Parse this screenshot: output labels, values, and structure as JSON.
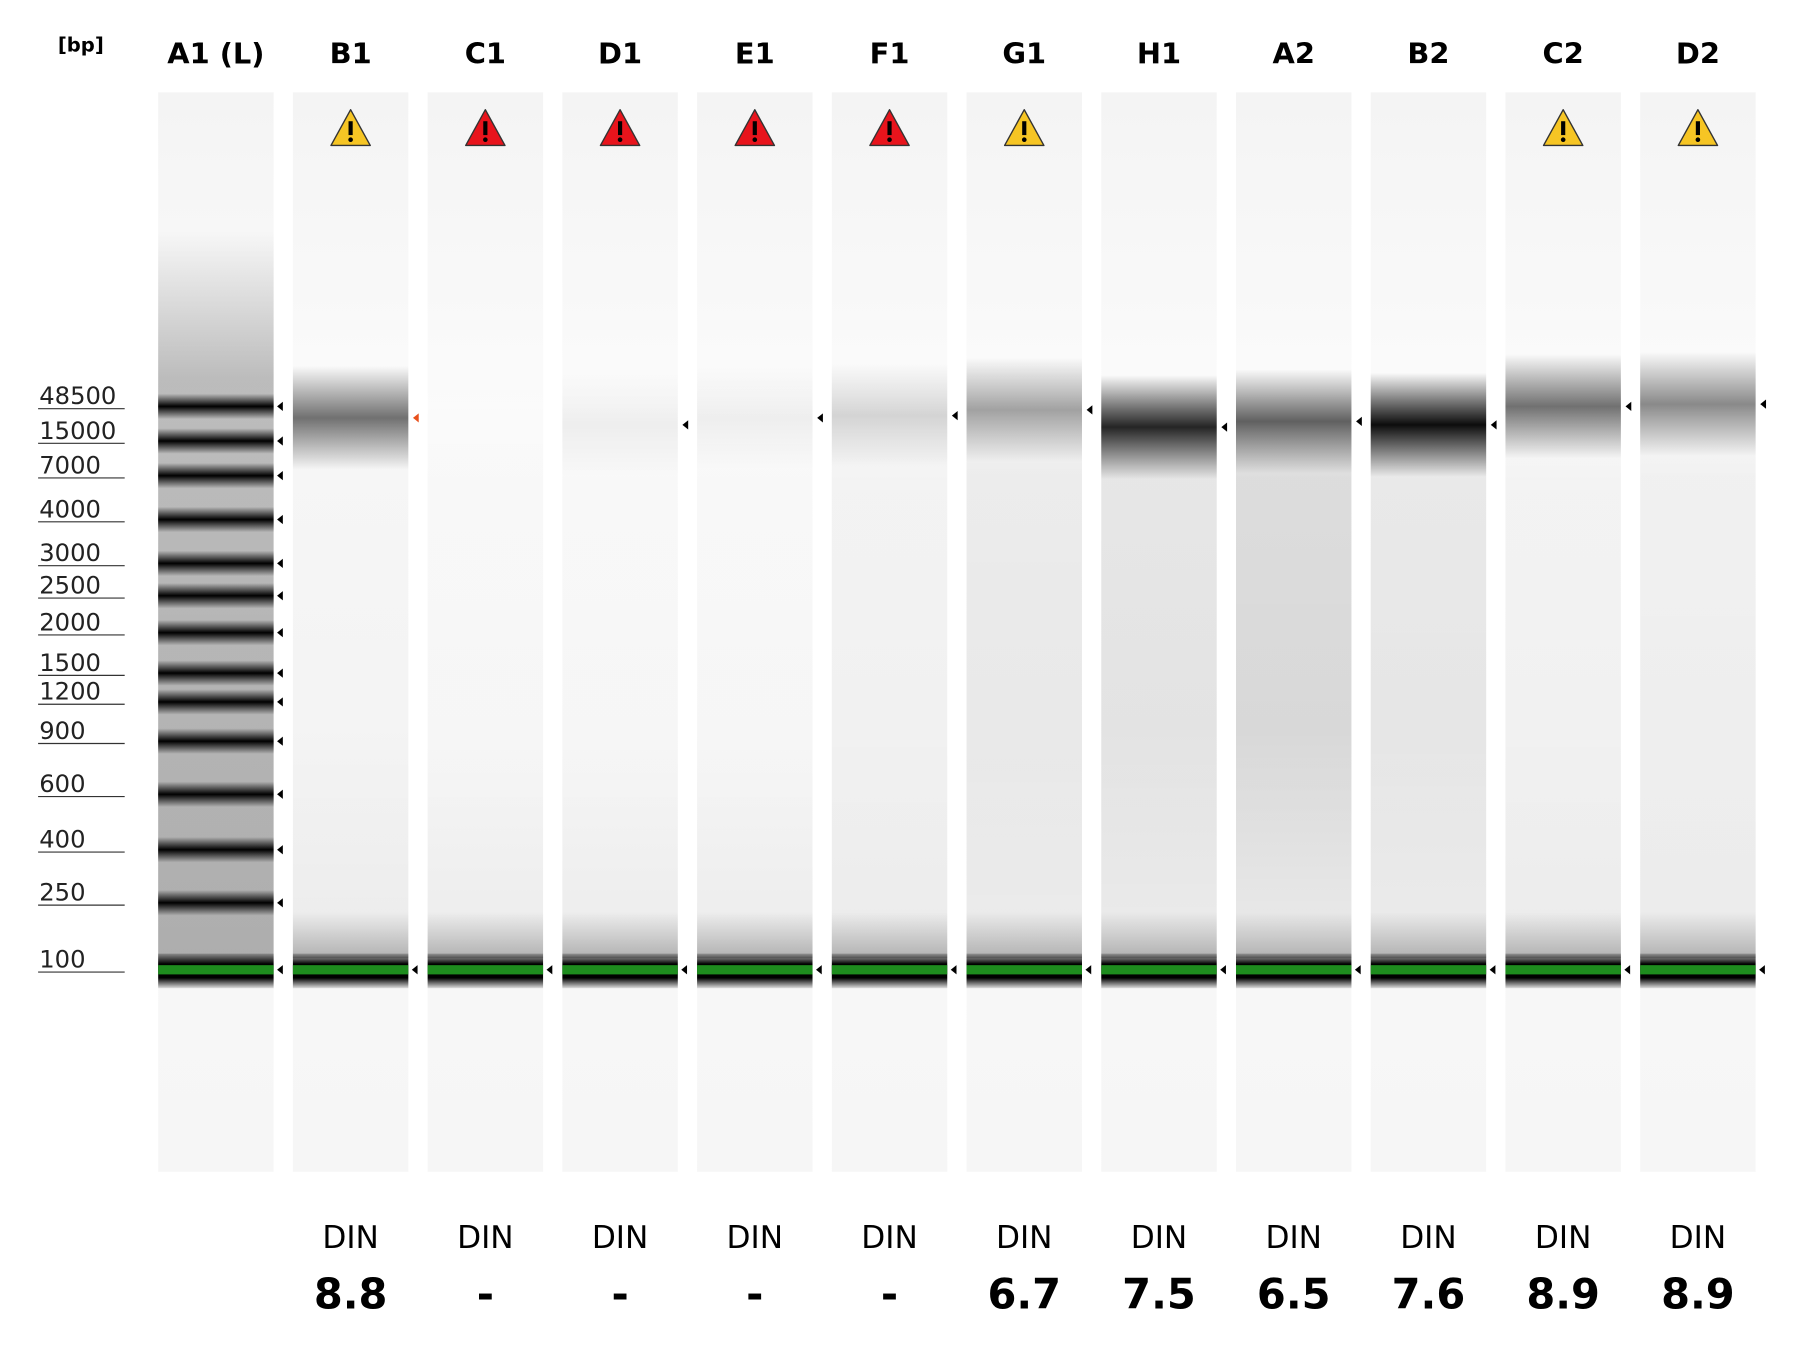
{
  "header": {
    "unit": "[bp]"
  },
  "ladder": {
    "labels": [
      "48500",
      "15000",
      "7000",
      "4000",
      "3000",
      "2500",
      "2000",
      "1500",
      "1200",
      "900",
      "600",
      "400",
      "250",
      "100"
    ]
  },
  "lanes": [
    {
      "label": "A1 (L)"
    },
    {
      "label": "B1",
      "warning": "caution",
      "din_label": "DIN",
      "din": "8.8"
    },
    {
      "label": "C1",
      "warning": "error",
      "din_label": "DIN",
      "din": "-"
    },
    {
      "label": "D1",
      "warning": "error",
      "din_label": "DIN",
      "din": "-"
    },
    {
      "label": "E1",
      "warning": "error",
      "din_label": "DIN",
      "din": "-"
    },
    {
      "label": "F1",
      "warning": "error",
      "din_label": "DIN",
      "din": "-"
    },
    {
      "label": "G1",
      "warning": "caution",
      "din_label": "DIN",
      "din": "6.7"
    },
    {
      "label": "H1",
      "din_label": "DIN",
      "din": "7.5"
    },
    {
      "label": "A2",
      "din_label": "DIN",
      "din": "6.5"
    },
    {
      "label": "B2",
      "din_label": "DIN",
      "din": "7.6"
    },
    {
      "label": "C2",
      "warning": "caution",
      "din_label": "DIN",
      "din": "8.9"
    },
    {
      "label": "D2",
      "warning": "caution",
      "din_label": "DIN",
      "din": "8.9"
    }
  ]
}
